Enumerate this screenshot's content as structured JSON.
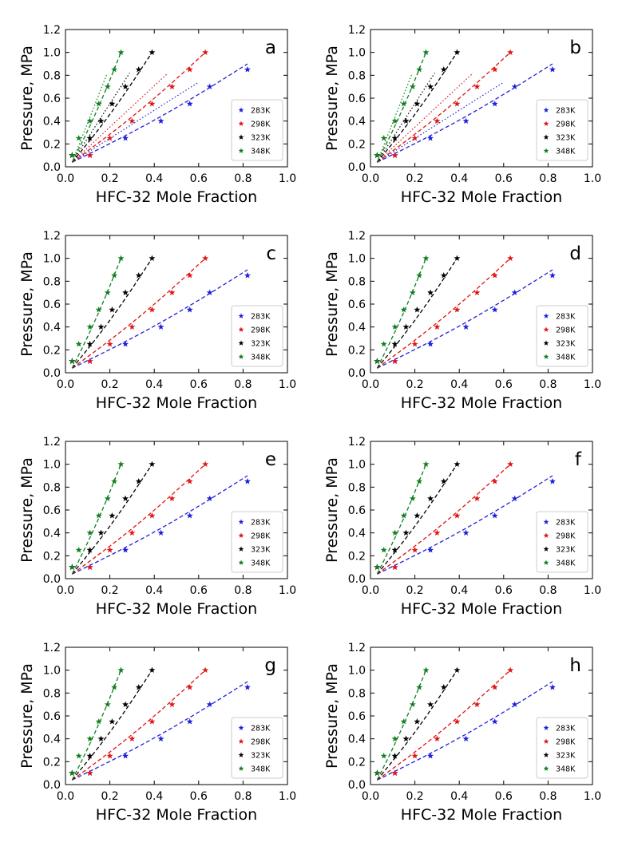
{
  "chart_data": {
    "type": "scatter",
    "layout": "4x2 panel grid",
    "panels": [
      "a",
      "b",
      "c",
      "d",
      "e",
      "f",
      "g",
      "h"
    ],
    "xlabel": "HFC-32 Mole Fraction",
    "ylabel": "Pressure, MPa",
    "xlim": [
      0.0,
      1.0
    ],
    "ylim": [
      0.0,
      1.2
    ],
    "xticks": [
      "0.0",
      "0.2",
      "0.4",
      "0.6",
      "0.8",
      "1.0"
    ],
    "yticks": [
      "0.0",
      "0.2",
      "0.4",
      "0.6",
      "0.8",
      "1.0",
      "1.2"
    ],
    "legend_position": "lower-right",
    "grid": false,
    "marker": "star",
    "series": [
      {
        "name": "283K",
        "color": "#1f1fd8",
        "x": [
          0.03,
          0.11,
          0.27,
          0.43,
          0.56,
          0.65,
          0.82
        ],
        "y": [
          0.1,
          0.1,
          0.25,
          0.4,
          0.55,
          0.7,
          0.85
        ],
        "fit_end": [
          0.82,
          0.9
        ]
      },
      {
        "name": "298K",
        "color": "#e01515",
        "x": [
          0.03,
          0.11,
          0.2,
          0.3,
          0.39,
          0.48,
          0.56,
          0.63
        ],
        "y": [
          0.1,
          0.1,
          0.25,
          0.4,
          0.55,
          0.7,
          0.85,
          1.0
        ],
        "fit_end": [
          0.63,
          1.0
        ]
      },
      {
        "name": "323K",
        "color": "#000000",
        "x": [
          0.03,
          0.11,
          0.16,
          0.21,
          0.27,
          0.33,
          0.39
        ],
        "y": [
          0.1,
          0.25,
          0.4,
          0.55,
          0.7,
          0.85,
          1.0
        ],
        "fit_end": [
          0.39,
          1.0
        ]
      },
      {
        "name": "348K",
        "color": "#0f7f1f",
        "x": [
          0.03,
          0.06,
          0.11,
          0.15,
          0.19,
          0.22,
          0.25
        ],
        "y": [
          0.1,
          0.25,
          0.4,
          0.55,
          0.7,
          0.85,
          1.0
        ],
        "fit_end": [
          0.25,
          1.0
        ]
      }
    ]
  }
}
